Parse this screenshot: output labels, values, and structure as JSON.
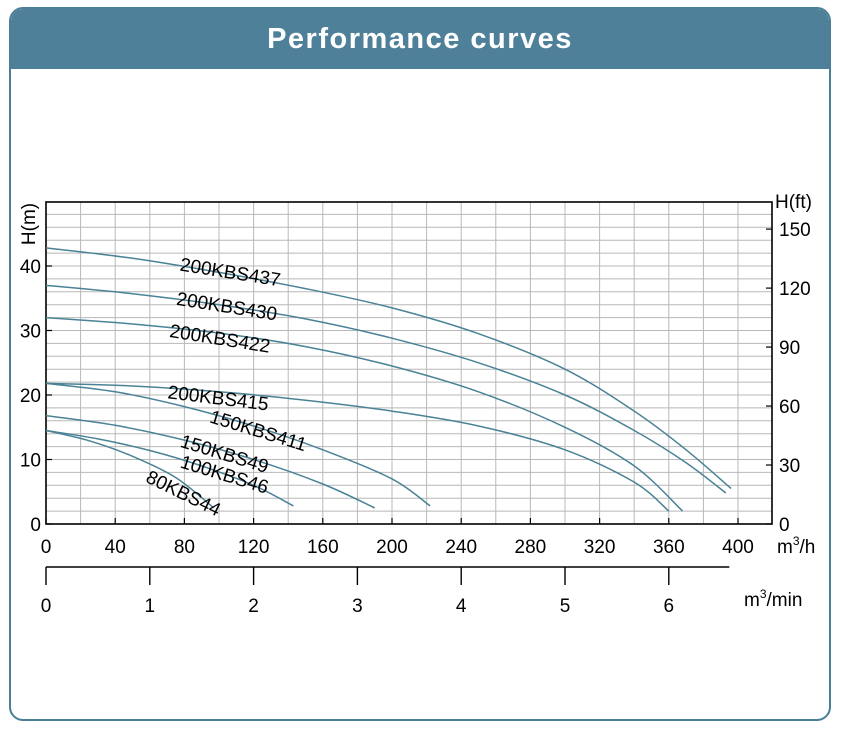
{
  "header": {
    "title": "Performance curves"
  },
  "colors": {
    "header": "#4f8099",
    "border": "#4b7f96",
    "curve": "#4a8296",
    "grid": "#b8b8b8"
  },
  "chart_data": {
    "type": "line",
    "title": "Performance curves",
    "x_axis": {
      "unit_base": "m",
      "unit_exp": "3",
      "unit_tail": "/h",
      "range": [
        0,
        400
      ],
      "ticks": [
        0,
        40,
        80,
        120,
        160,
        200,
        240,
        280,
        320,
        360,
        400
      ]
    },
    "x2_axis": {
      "unit_base": "m",
      "unit_exp": "3",
      "unit_tail": "/min",
      "ticks": [
        0,
        1,
        2,
        3,
        4,
        5,
        6
      ]
    },
    "y_axis": {
      "label": "H(m)",
      "range": [
        0,
        50
      ],
      "ticks": [
        0,
        10,
        20,
        30,
        40
      ]
    },
    "y2_axis": {
      "label": "H(ft)",
      "ticks": [
        0,
        30,
        60,
        90,
        120,
        150
      ]
    },
    "grid": true,
    "series": [
      {
        "name": "200KBS437",
        "points": [
          [
            0,
            42.8
          ],
          [
            50,
            41.2
          ],
          [
            100,
            39.0
          ],
          [
            150,
            36.5
          ],
          [
            200,
            33.5
          ],
          [
            250,
            29.5
          ],
          [
            300,
            24.0
          ],
          [
            340,
            17.5
          ],
          [
            370,
            11.5
          ],
          [
            396,
            5.5
          ]
        ]
      },
      {
        "name": "200KBS430",
        "points": [
          [
            0,
            37.0
          ],
          [
            50,
            35.7
          ],
          [
            100,
            34.0
          ],
          [
            150,
            31.8
          ],
          [
            200,
            28.8
          ],
          [
            250,
            25.0
          ],
          [
            300,
            20.0
          ],
          [
            340,
            14.5
          ],
          [
            370,
            9.5
          ],
          [
            393,
            4.8
          ]
        ]
      },
      {
        "name": "200KBS422",
        "points": [
          [
            0,
            32.0
          ],
          [
            50,
            31.0
          ],
          [
            100,
            29.6
          ],
          [
            150,
            27.5
          ],
          [
            200,
            24.5
          ],
          [
            250,
            20.5
          ],
          [
            300,
            15.0
          ],
          [
            340,
            9.0
          ],
          [
            368,
            2.0
          ]
        ]
      },
      {
        "name": "200KBS415",
        "points": [
          [
            0,
            21.8
          ],
          [
            50,
            21.4
          ],
          [
            100,
            20.5
          ],
          [
            150,
            19.2
          ],
          [
            200,
            17.5
          ],
          [
            250,
            15.2
          ],
          [
            300,
            11.5
          ],
          [
            340,
            6.5
          ],
          [
            360,
            2.0
          ]
        ]
      },
      {
        "name": "150KBS411",
        "points": [
          [
            0,
            21.8
          ],
          [
            40,
            20.5
          ],
          [
            80,
            18.2
          ],
          [
            120,
            15.2
          ],
          [
            160,
            11.5
          ],
          [
            200,
            7.0
          ],
          [
            222,
            2.8
          ]
        ]
      },
      {
        "name": "150KBS49",
        "points": [
          [
            0,
            16.8
          ],
          [
            40,
            15.3
          ],
          [
            80,
            13.0
          ],
          [
            120,
            10.0
          ],
          [
            160,
            6.2
          ],
          [
            190,
            2.5
          ]
        ]
      },
      {
        "name": "100KBS46",
        "points": [
          [
            0,
            14.5
          ],
          [
            30,
            13.2
          ],
          [
            60,
            11.4
          ],
          [
            90,
            9.0
          ],
          [
            120,
            6.0
          ],
          [
            143,
            2.8
          ]
        ]
      },
      {
        "name": "80KBS44",
        "points": [
          [
            0,
            14.5
          ],
          [
            25,
            12.9
          ],
          [
            50,
            10.5
          ],
          [
            75,
            7.2
          ],
          [
            97,
            2.5
          ]
        ]
      }
    ],
    "curve_labels": [
      {
        "text": "200KBS437",
        "x": 77,
        "y": 39.3,
        "angle": 9
      },
      {
        "text": "200KBS430",
        "x": 75,
        "y": 34.0,
        "angle": 9
      },
      {
        "text": "200KBS422",
        "x": 71,
        "y": 29.0,
        "angle": 9
      },
      {
        "text": "200KBS415",
        "x": 70,
        "y": 19.5,
        "angle": 7
      },
      {
        "text": "150KBS411",
        "x": 94,
        "y": 15.8,
        "angle": 17
      },
      {
        "text": "150KBS49",
        "x": 77,
        "y": 12.0,
        "angle": 17
      },
      {
        "text": "100KBS46",
        "x": 77,
        "y": 8.8,
        "angle": 17
      },
      {
        "text": "80KBS44",
        "x": 57,
        "y": 6.6,
        "angle": 26
      }
    ]
  }
}
